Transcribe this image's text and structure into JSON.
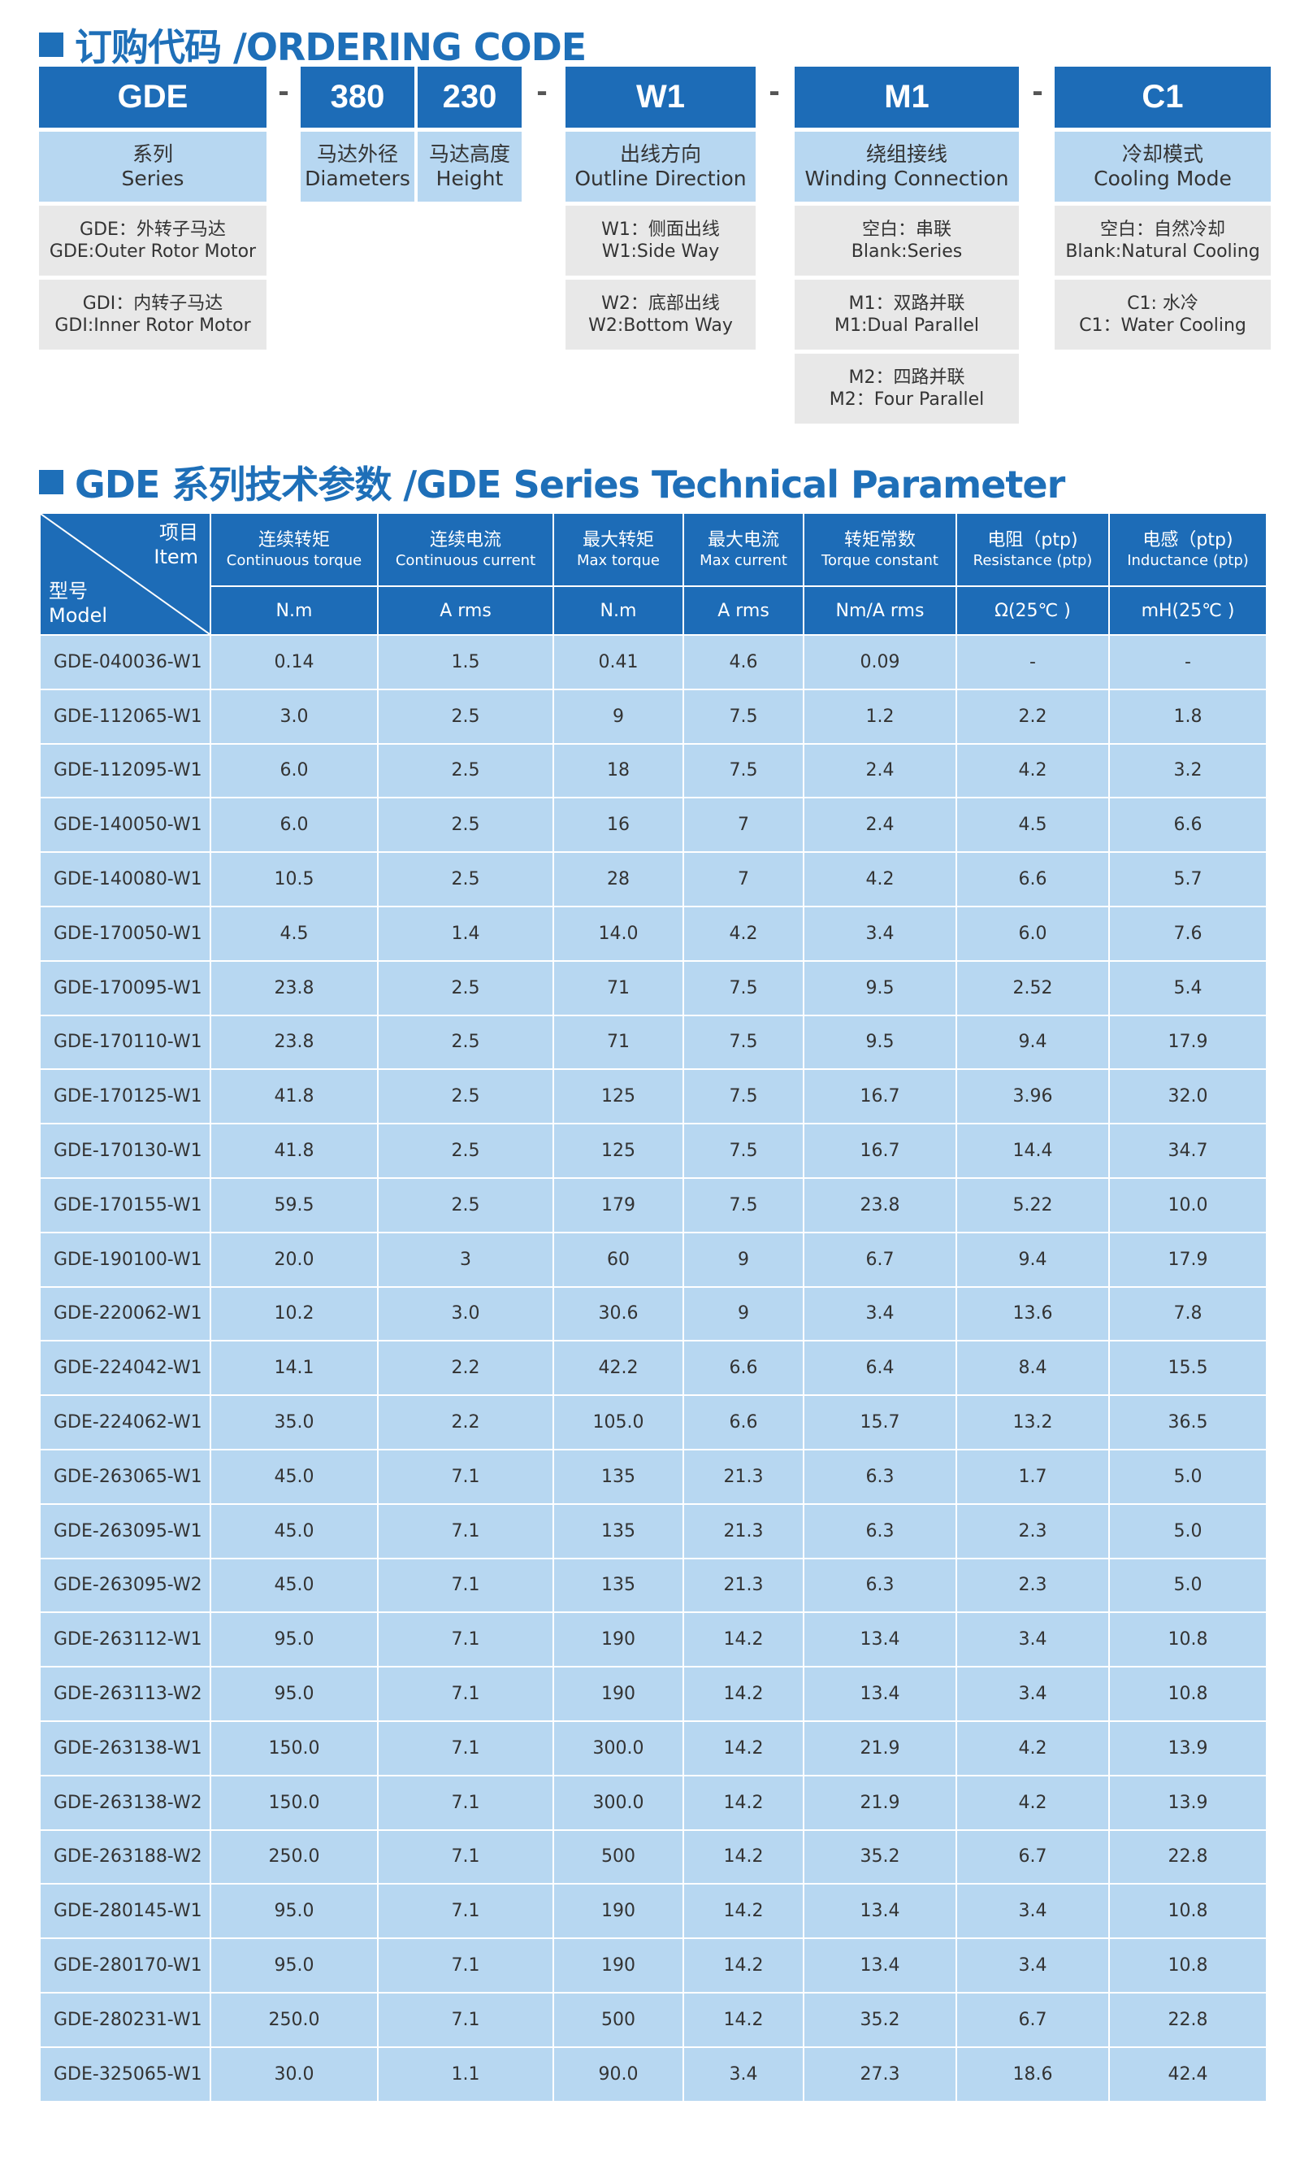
{
  "ordering": {
    "title": "订购代码 /ORDERING CODE",
    "codes": {
      "series": "GDE",
      "diameter": "380",
      "height": "230",
      "outline": "W1",
      "winding": "M1",
      "cooling": "C1"
    },
    "labels": {
      "series": {
        "cn": "系列",
        "en": "Series"
      },
      "diameter": {
        "cn": "马达外径",
        "en": "Diameters"
      },
      "height": {
        "cn": "马达高度",
        "en": "Height"
      },
      "outline": {
        "cn": "出线方向",
        "en": "Outline Direction"
      },
      "winding": {
        "cn": "绕组接线",
        "en": "Winding Connection"
      },
      "cooling": {
        "cn": "冷却模式",
        "en": "Cooling Mode"
      }
    },
    "options": {
      "series": [
        {
          "cn": "GDE：外转子马达",
          "en": "GDE:Outer Rotor Motor"
        },
        {
          "cn": "GDI：内转子马达",
          "en": "GDI:Inner Rotor Motor"
        }
      ],
      "outline": [
        {
          "cn": "W1：侧面出线",
          "en": "W1:Side Way"
        },
        {
          "cn": "W2：底部出线",
          "en": "W2:Bottom Way"
        }
      ],
      "winding": [
        {
          "cn": "空白：串联",
          "en": "Blank:Series"
        },
        {
          "cn": "M1：双路并联",
          "en": "M1:Dual Parallel"
        },
        {
          "cn": "M2：四路并联",
          "en": "M2：Four Parallel"
        }
      ],
      "cooling": [
        {
          "cn": "空白：自然冷却",
          "en": "Blank:Natural Cooling"
        },
        {
          "cn": "C1: 水冷",
          "en": "C1：Water Cooling"
        }
      ]
    }
  },
  "technical": {
    "title": "GDE 系列技术参数 /GDE Series Technical Parameter",
    "corner": {
      "item_cn": "项目",
      "item_en": "Item",
      "model_cn": "型号",
      "model_en": "Model"
    },
    "columns": [
      {
        "cn": "连续转矩",
        "en": "Continuous torque",
        "unit": "N.m"
      },
      {
        "cn": "连续电流",
        "en": "Continuous current",
        "unit": "A rms"
      },
      {
        "cn": "最大转矩",
        "en": "Max torque",
        "unit": "N.m"
      },
      {
        "cn": "最大电流",
        "en": "Max current",
        "unit": "A rms"
      },
      {
        "cn": "转矩常数",
        "en": "Torque constant",
        "unit": "Nm/A rms"
      },
      {
        "cn": "电阻（ptp)",
        "en": "Resistance (ptp)",
        "unit": "Ω(25℃ )"
      },
      {
        "cn": "电感（ptp)",
        "en": "Inductance (ptp)",
        "unit": "mH(25℃ )"
      }
    ],
    "rows": [
      [
        "GDE-040036-W1",
        "0.14",
        "1.5",
        "0.41",
        "4.6",
        "0.09",
        "-",
        "-"
      ],
      [
        "GDE-112065-W1",
        "3.0",
        "2.5",
        "9",
        "7.5",
        "1.2",
        "2.2",
        "1.8"
      ],
      [
        "GDE-112095-W1",
        "6.0",
        "2.5",
        "18",
        "7.5",
        "2.4",
        "4.2",
        "3.2"
      ],
      [
        "GDE-140050-W1",
        "6.0",
        "2.5",
        "16",
        "7",
        "2.4",
        "4.5",
        "6.6"
      ],
      [
        "GDE-140080-W1",
        "10.5",
        "2.5",
        "28",
        "7",
        "4.2",
        "6.6",
        "5.7"
      ],
      [
        "GDE-170050-W1",
        "4.5",
        "1.4",
        "14.0",
        "4.2",
        "3.4",
        "6.0",
        "7.6"
      ],
      [
        "GDE-170095-W1",
        "23.8",
        "2.5",
        "71",
        "7.5",
        "9.5",
        "2.52",
        "5.4"
      ],
      [
        "GDE-170110-W1",
        "23.8",
        "2.5",
        "71",
        "7.5",
        "9.5",
        "9.4",
        "17.9"
      ],
      [
        "GDE-170125-W1",
        "41.8",
        "2.5",
        "125",
        "7.5",
        "16.7",
        "3.96",
        "32.0"
      ],
      [
        "GDE-170130-W1",
        "41.8",
        "2.5",
        "125",
        "7.5",
        "16.7",
        "14.4",
        "34.7"
      ],
      [
        "GDE-170155-W1",
        "59.5",
        "2.5",
        "179",
        "7.5",
        "23.8",
        "5.22",
        "10.0"
      ],
      [
        "GDE-190100-W1",
        "20.0",
        "3",
        "60",
        "9",
        "6.7",
        "9.4",
        "17.9"
      ],
      [
        "GDE-220062-W1",
        "10.2",
        "3.0",
        "30.6",
        "9",
        "3.4",
        "13.6",
        "7.8"
      ],
      [
        "GDE-224042-W1",
        "14.1",
        "2.2",
        "42.2",
        "6.6",
        "6.4",
        "8.4",
        "15.5"
      ],
      [
        "GDE-224062-W1",
        "35.0",
        "2.2",
        "105.0",
        "6.6",
        "15.7",
        "13.2",
        "36.5"
      ],
      [
        "GDE-263065-W1",
        "45.0",
        "7.1",
        "135",
        "21.3",
        "6.3",
        "1.7",
        "5.0"
      ],
      [
        "GDE-263095-W1",
        "45.0",
        "7.1",
        "135",
        "21.3",
        "6.3",
        "2.3",
        "5.0"
      ],
      [
        "GDE-263095-W2",
        "45.0",
        "7.1",
        "135",
        "21.3",
        "6.3",
        "2.3",
        "5.0"
      ],
      [
        "GDE-263112-W1",
        "95.0",
        "7.1",
        "190",
        "14.2",
        "13.4",
        "3.4",
        "10.8"
      ],
      [
        "GDE-263113-W2",
        "95.0",
        "7.1",
        "190",
        "14.2",
        "13.4",
        "3.4",
        "10.8"
      ],
      [
        "GDE-263138-W1",
        "150.0",
        "7.1",
        "300.0",
        "14.2",
        "21.9",
        "4.2",
        "13.9"
      ],
      [
        "GDE-263138-W2",
        "150.0",
        "7.1",
        "300.0",
        "14.2",
        "21.9",
        "4.2",
        "13.9"
      ],
      [
        "GDE-263188-W2",
        "250.0",
        "7.1",
        "500",
        "14.2",
        "35.2",
        "6.7",
        "22.8"
      ],
      [
        "GDE-280145-W1",
        "95.0",
        "7.1",
        "190",
        "14.2",
        "13.4",
        "3.4",
        "10.8"
      ],
      [
        "GDE-280170-W1",
        "95.0",
        "7.1",
        "190",
        "14.2",
        "13.4",
        "3.4",
        "10.8"
      ],
      [
        "GDE-280231-W1",
        "250.0",
        "7.1",
        "500",
        "14.2",
        "35.2",
        "6.7",
        "22.8"
      ],
      [
        "GDE-325065-W1",
        "30.0",
        "1.1",
        "90.0",
        "3.4",
        "27.3",
        "18.6",
        "42.4"
      ]
    ]
  }
}
